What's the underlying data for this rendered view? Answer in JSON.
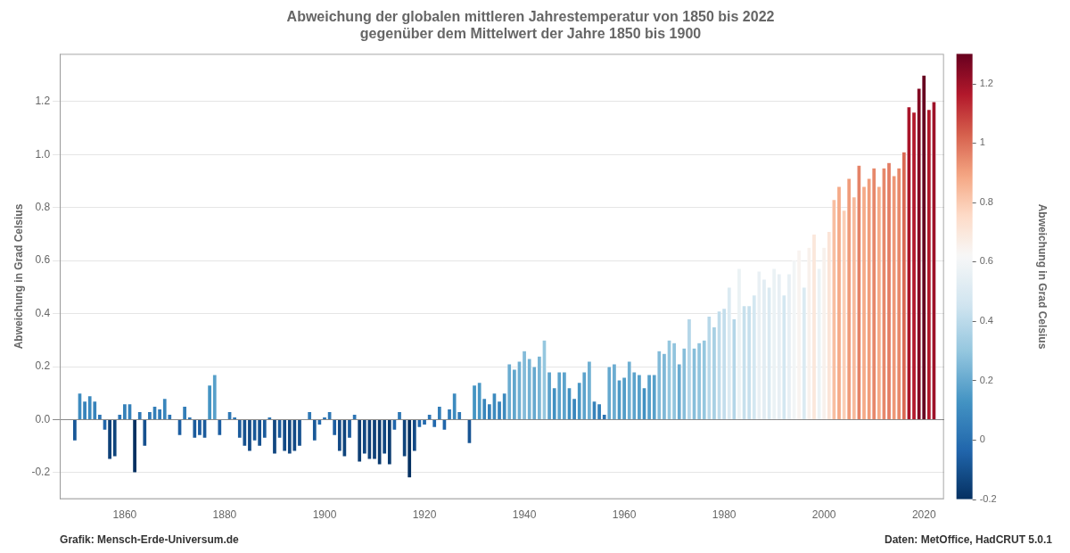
{
  "chart_data": {
    "type": "bar",
    "title": "Abweichung der globalen mittleren Jahrestemperatur von 1850 bis 2022",
    "subtitle": "gegenüber dem Mittelwert der Jahre 1850 bis 1900",
    "ylabel": "Abweichung in Grad Celsius",
    "annotations": [
      "Grafik: Mensch-Erde-Universum.de",
      "Daten: MetOffice, HadCRUT 5.0.1"
    ],
    "x": [
      1850,
      1851,
      1852,
      1853,
      1854,
      1855,
      1856,
      1857,
      1858,
      1859,
      1860,
      1861,
      1862,
      1863,
      1864,
      1865,
      1866,
      1867,
      1868,
      1869,
      1870,
      1871,
      1872,
      1873,
      1874,
      1875,
      1876,
      1877,
      1878,
      1879,
      1880,
      1881,
      1882,
      1883,
      1884,
      1885,
      1886,
      1887,
      1888,
      1889,
      1890,
      1891,
      1892,
      1893,
      1894,
      1895,
      1896,
      1897,
      1898,
      1899,
      1900,
      1901,
      1902,
      1903,
      1904,
      1905,
      1906,
      1907,
      1908,
      1909,
      1910,
      1911,
      1912,
      1913,
      1914,
      1915,
      1916,
      1917,
      1918,
      1919,
      1920,
      1921,
      1922,
      1923,
      1924,
      1925,
      1926,
      1927,
      1928,
      1929,
      1930,
      1931,
      1932,
      1933,
      1934,
      1935,
      1936,
      1937,
      1938,
      1939,
      1940,
      1941,
      1942,
      1943,
      1944,
      1945,
      1946,
      1947,
      1948,
      1949,
      1950,
      1951,
      1952,
      1953,
      1954,
      1955,
      1956,
      1957,
      1958,
      1959,
      1960,
      1961,
      1962,
      1963,
      1964,
      1965,
      1966,
      1967,
      1968,
      1969,
      1970,
      1971,
      1972,
      1973,
      1974,
      1975,
      1976,
      1977,
      1978,
      1979,
      1980,
      1981,
      1982,
      1983,
      1984,
      1985,
      1986,
      1987,
      1988,
      1989,
      1990,
      1991,
      1992,
      1993,
      1994,
      1995,
      1996,
      1997,
      1998,
      1999,
      2000,
      2001,
      2002,
      2003,
      2004,
      2005,
      2006,
      2007,
      2008,
      2009,
      2010,
      2011,
      2012,
      2013,
      2014,
      2015,
      2016,
      2017,
      2018,
      2019,
      2020,
      2021,
      2022
    ],
    "values": [
      -0.08,
      0.1,
      0.07,
      0.09,
      0.07,
      0.02,
      -0.04,
      -0.15,
      -0.14,
      0.02,
      0.06,
      0.06,
      -0.2,
      0.03,
      -0.1,
      0.03,
      0.05,
      0.04,
      0.08,
      0.02,
      0.0,
      -0.06,
      0.05,
      0.01,
      -0.07,
      -0.06,
      -0.07,
      0.13,
      0.17,
      -0.06,
      0.0,
      0.03,
      0.01,
      -0.07,
      -0.1,
      -0.12,
      -0.08,
      -0.1,
      -0.07,
      0.01,
      -0.13,
      -0.07,
      -0.12,
      -0.13,
      -0.12,
      -0.1,
      0.0,
      0.03,
      -0.08,
      -0.02,
      0.01,
      0.03,
      -0.06,
      -0.12,
      -0.14,
      -0.07,
      0.02,
      -0.16,
      -0.13,
      -0.15,
      -0.15,
      -0.17,
      -0.13,
      -0.17,
      -0.04,
      0.03,
      -0.14,
      -0.22,
      -0.12,
      -0.03,
      -0.02,
      0.02,
      -0.03,
      0.05,
      -0.04,
      0.04,
      0.1,
      0.03,
      0.0,
      -0.09,
      0.13,
      0.14,
      0.08,
      0.06,
      0.1,
      0.07,
      0.1,
      0.21,
      0.19,
      0.22,
      0.26,
      0.23,
      0.2,
      0.24,
      0.3,
      0.18,
      0.12,
      0.18,
      0.18,
      0.12,
      0.08,
      0.14,
      0.18,
      0.22,
      0.07,
      0.06,
      0.02,
      0.2,
      0.21,
      0.15,
      0.16,
      0.22,
      0.18,
      0.17,
      0.12,
      0.17,
      0.17,
      0.26,
      0.25,
      0.3,
      0.29,
      0.21,
      0.27,
      0.38,
      0.27,
      0.29,
      0.3,
      0.39,
      0.35,
      0.41,
      0.42,
      0.5,
      0.38,
      0.57,
      0.43,
      0.43,
      0.47,
      0.56,
      0.53,
      0.5,
      0.57,
      0.55,
      0.47,
      0.55,
      0.6,
      0.64,
      0.5,
      0.65,
      0.7,
      0.57,
      0.65,
      0.71,
      0.83,
      0.88,
      0.79,
      0.91,
      0.84,
      0.96,
      0.88,
      0.91,
      0.95,
      0.88,
      0.95,
      0.97,
      0.92,
      0.95,
      1.01,
      1.18,
      1.16,
      1.25,
      1.3,
      1.17,
      1.2
    ],
    "xlim": [
      1847,
      2024
    ],
    "xticks": [
      1860,
      1880,
      1900,
      1920,
      1940,
      1960,
      1980,
      2000,
      2020
    ],
    "ylim": [
      -0.3,
      1.38
    ],
    "yticks": [
      -0.2,
      {
        "value": 0,
        "label": "0.0"
      },
      0.2,
      0.4,
      0.6,
      0.8,
      {
        "value": 1,
        "label": "1.0"
      },
      1.2
    ],
    "grid": true,
    "colorbar_label": "Abweichung in Grad Celsius",
    "colorbar_range": [
      -0.2,
      1.3
    ],
    "colorbar_center": 0.62,
    "colorbar_ticks": [
      -0.2,
      0,
      0.2,
      0.4,
      0.6,
      0.8,
      1,
      1.2
    ]
  }
}
